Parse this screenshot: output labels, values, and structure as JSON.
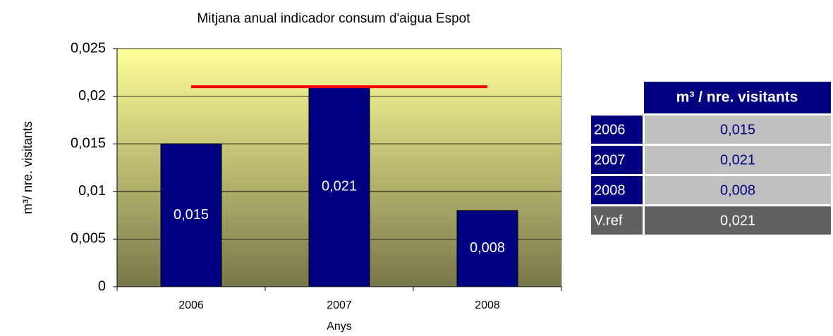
{
  "chart_data": {
    "type": "bar",
    "title": "Mitjana anual indicador consum d'aigua Espot",
    "x_label": "Anys",
    "y_label": "m³/ nre. visitants",
    "categories": [
      "2006",
      "2007",
      "2008"
    ],
    "values": [
      0.015,
      0.021,
      0.008
    ],
    "value_labels": [
      "0,015",
      "0,021",
      "0,008"
    ],
    "color": "#000080",
    "reference_line": {
      "value": 0.021,
      "color": "#ff0000"
    },
    "ylim": [
      0,
      0.025
    ],
    "yticks": [
      0,
      {
        "value": 0.005,
        "label": "0,005"
      },
      {
        "value": 0.01,
        "label": "0,01"
      },
      {
        "value": 0.015,
        "label": "0,015"
      },
      {
        "value": 0.02,
        "label": "0,02"
      },
      {
        "value": 0.025,
        "label": "0,025"
      }
    ],
    "grid": true
  },
  "table": {
    "header": "m³ / nre. visitants",
    "rows": [
      [
        "2006",
        "0,015"
      ],
      [
        "2007",
        "0,021"
      ],
      [
        "2008",
        "0,008"
      ],
      [
        "V.ref",
        "0,021"
      ]
    ]
  }
}
